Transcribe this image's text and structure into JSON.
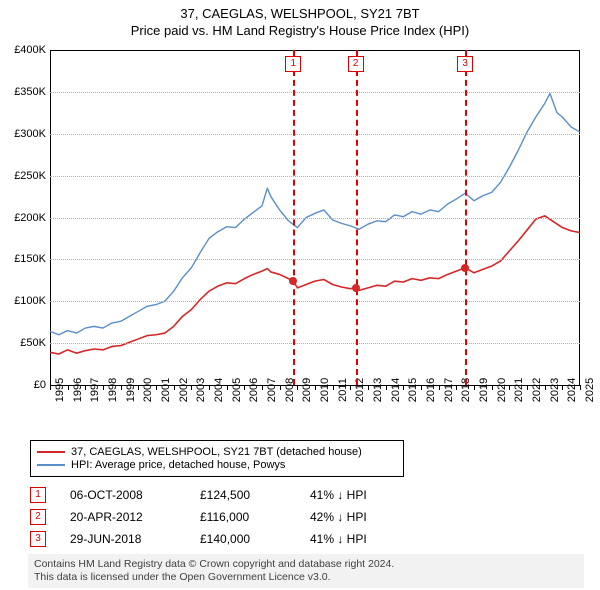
{
  "title": {
    "line1": "37, CAEGLAS, WELSHPOOL, SY21 7BT",
    "line2": "Price paid vs. HM Land Registry's House Price Index (HPI)"
  },
  "chart": {
    "type": "line",
    "x_years": [
      1995,
      1996,
      1997,
      1998,
      1999,
      2000,
      2001,
      2002,
      2003,
      2004,
      2005,
      2006,
      2007,
      2008,
      2009,
      2010,
      2011,
      2012,
      2013,
      2014,
      2015,
      2016,
      2017,
      2018,
      2019,
      2020,
      2021,
      2022,
      2023,
      2024,
      2025
    ],
    "xlim": [
      1995,
      2025
    ],
    "ylim": [
      0,
      400000
    ],
    "ytick_step": 50000,
    "ytick_labels": [
      "£0",
      "£50K",
      "£100K",
      "£150K",
      "£200K",
      "£250K",
      "£300K",
      "£350K",
      "£400K"
    ],
    "grid_color": "#b0b0b0",
    "background_color": "#ffffff",
    "axis_color": "#000000",
    "series": {
      "red": {
        "label": "37, CAEGLAS, WELSHPOOL, SY21 7BT (detached house)",
        "color": "#d62728",
        "line_width": 1.6,
        "data": [
          [
            1995.0,
            39000
          ],
          [
            1995.5,
            37000
          ],
          [
            1996.0,
            42000
          ],
          [
            1996.5,
            38000
          ],
          [
            1997.0,
            41000
          ],
          [
            1997.5,
            43000
          ],
          [
            1998.0,
            42000
          ],
          [
            1998.5,
            46000
          ],
          [
            1999.0,
            47000
          ],
          [
            1999.5,
            51000
          ],
          [
            2000.0,
            55000
          ],
          [
            2000.5,
            59000
          ],
          [
            2001.0,
            60000
          ],
          [
            2001.5,
            62000
          ],
          [
            2002.0,
            70000
          ],
          [
            2002.5,
            82000
          ],
          [
            2003.0,
            90000
          ],
          [
            2003.5,
            102000
          ],
          [
            2004.0,
            112000
          ],
          [
            2004.5,
            118000
          ],
          [
            2005.0,
            122000
          ],
          [
            2005.5,
            121000
          ],
          [
            2006.0,
            127000
          ],
          [
            2006.5,
            132000
          ],
          [
            2007.0,
            136000
          ],
          [
            2007.3,
            139000
          ],
          [
            2007.5,
            135000
          ],
          [
            2008.0,
            132000
          ],
          [
            2008.5,
            127000
          ],
          [
            2008.77,
            124500
          ],
          [
            2009.0,
            116000
          ],
          [
            2009.5,
            120000
          ],
          [
            2010.0,
            124000
          ],
          [
            2010.5,
            126000
          ],
          [
            2011.0,
            120000
          ],
          [
            2011.5,
            117000
          ],
          [
            2012.0,
            115000
          ],
          [
            2012.3,
            116000
          ],
          [
            2012.5,
            113000
          ],
          [
            2013.0,
            116000
          ],
          [
            2013.5,
            119000
          ],
          [
            2014.0,
            118000
          ],
          [
            2014.5,
            124000
          ],
          [
            2015.0,
            123000
          ],
          [
            2015.5,
            127000
          ],
          [
            2016.0,
            125000
          ],
          [
            2016.5,
            128000
          ],
          [
            2017.0,
            127000
          ],
          [
            2017.5,
            132000
          ],
          [
            2018.0,
            136000
          ],
          [
            2018.5,
            140000
          ],
          [
            2019.0,
            134000
          ],
          [
            2019.5,
            138000
          ],
          [
            2020.0,
            142000
          ],
          [
            2020.5,
            148000
          ],
          [
            2021.0,
            160000
          ],
          [
            2021.5,
            172000
          ],
          [
            2022.0,
            185000
          ],
          [
            2022.5,
            198000
          ],
          [
            2023.0,
            202000
          ],
          [
            2023.5,
            195000
          ],
          [
            2024.0,
            188000
          ],
          [
            2024.5,
            184000
          ],
          [
            2025.0,
            182000
          ]
        ]
      },
      "blue": {
        "label": "HPI: Average price, detached house, Powys",
        "color": "#5a8ecb",
        "line_width": 1.4,
        "data": [
          [
            1995.0,
            64000
          ],
          [
            1995.5,
            60000
          ],
          [
            1996.0,
            65000
          ],
          [
            1996.5,
            62000
          ],
          [
            1997.0,
            68000
          ],
          [
            1997.5,
            70000
          ],
          [
            1998.0,
            68000
          ],
          [
            1998.5,
            74000
          ],
          [
            1999.0,
            76000
          ],
          [
            1999.5,
            82000
          ],
          [
            2000.0,
            88000
          ],
          [
            2000.5,
            94000
          ],
          [
            2001.0,
            96000
          ],
          [
            2001.5,
            100000
          ],
          [
            2002.0,
            112000
          ],
          [
            2002.5,
            128000
          ],
          [
            2003.0,
            140000
          ],
          [
            2003.5,
            158000
          ],
          [
            2004.0,
            175000
          ],
          [
            2004.5,
            183000
          ],
          [
            2005.0,
            189000
          ],
          [
            2005.5,
            188000
          ],
          [
            2006.0,
            198000
          ],
          [
            2006.5,
            206000
          ],
          [
            2007.0,
            214000
          ],
          [
            2007.3,
            235000
          ],
          [
            2007.5,
            225000
          ],
          [
            2008.0,
            209000
          ],
          [
            2008.5,
            196000
          ],
          [
            2009.0,
            188000
          ],
          [
            2009.5,
            200000
          ],
          [
            2010.0,
            205000
          ],
          [
            2010.5,
            209000
          ],
          [
            2011.0,
            197000
          ],
          [
            2011.5,
            193000
          ],
          [
            2012.0,
            190000
          ],
          [
            2012.5,
            186000
          ],
          [
            2013.0,
            192000
          ],
          [
            2013.5,
            196000
          ],
          [
            2014.0,
            195000
          ],
          [
            2014.5,
            203000
          ],
          [
            2015.0,
            201000
          ],
          [
            2015.5,
            207000
          ],
          [
            2016.0,
            204000
          ],
          [
            2016.5,
            209000
          ],
          [
            2017.0,
            207000
          ],
          [
            2017.5,
            216000
          ],
          [
            2018.0,
            222000
          ],
          [
            2018.5,
            229000
          ],
          [
            2019.0,
            220000
          ],
          [
            2019.5,
            226000
          ],
          [
            2020.0,
            230000
          ],
          [
            2020.5,
            242000
          ],
          [
            2021.0,
            260000
          ],
          [
            2021.5,
            280000
          ],
          [
            2022.0,
            302000
          ],
          [
            2022.5,
            320000
          ],
          [
            2023.0,
            336000
          ],
          [
            2023.3,
            348000
          ],
          [
            2023.7,
            325000
          ],
          [
            2024.0,
            320000
          ],
          [
            2024.5,
            308000
          ],
          [
            2025.0,
            302000
          ]
        ]
      }
    },
    "markers": [
      {
        "num": "1",
        "year": 2008.77,
        "value": 124500,
        "color": "#e00000"
      },
      {
        "num": "2",
        "year": 2012.3,
        "value": 116000,
        "color": "#e00000"
      },
      {
        "num": "3",
        "year": 2018.5,
        "value": 140000,
        "color": "#e00000"
      }
    ]
  },
  "legend": {
    "rows": [
      {
        "color": "#d62728",
        "label": "37, CAEGLAS, WELSHPOOL, SY21 7BT (detached house)"
      },
      {
        "color": "#5a8ecb",
        "label": "HPI: Average price, detached house, Powys"
      }
    ]
  },
  "events": [
    {
      "num": "1",
      "date": "06-OCT-2008",
      "price": "£124,500",
      "diff": "41% ↓ HPI"
    },
    {
      "num": "2",
      "date": "20-APR-2012",
      "price": "£116,000",
      "diff": "42% ↓ HPI"
    },
    {
      "num": "3",
      "date": "29-JUN-2018",
      "price": "£140,000",
      "diff": "41% ↓ HPI"
    }
  ],
  "footer": {
    "line1": "Contains HM Land Registry data © Crown copyright and database right 2024.",
    "line2": "This data is licensed under the Open Government Licence v3.0."
  }
}
